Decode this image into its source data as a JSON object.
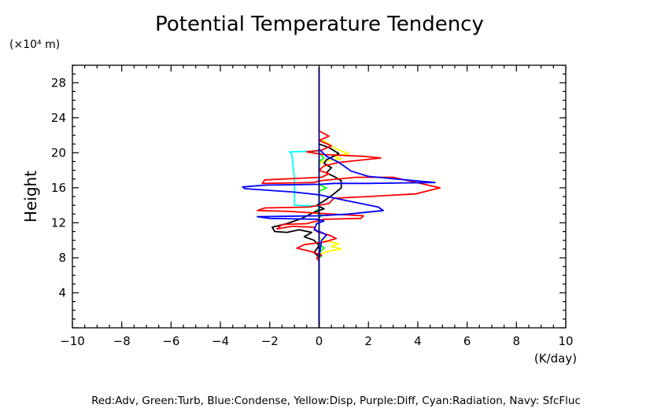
{
  "chart_data": {
    "type": "line",
    "title": "Potential Temperature Tendency",
    "ylabel": "Height",
    "y_unit": "(×10⁴ m)",
    "x_unit": "(K/day)",
    "xlim": [
      -10,
      10
    ],
    "ylim": [
      0,
      30
    ],
    "x_ticks": [
      "−10",
      "−8",
      "−6",
      "−4",
      "−2",
      "0",
      "2",
      "4",
      "6",
      "8",
      "10"
    ],
    "y_ticks": [
      "4",
      "8",
      "12",
      "16",
      "20",
      "24",
      "28"
    ],
    "footer": "Red:Adv, Green:Turb, Blue:Condense, Yellow:Disp, Purple:Diff, Cyan:Radiation, Navy: SfcFluc",
    "series": [
      {
        "color": "#ffff00",
        "points": [
          [
            0,
            21.6
          ],
          [
            0.3,
            21.2
          ],
          [
            0.6,
            20.6
          ],
          [
            0.9,
            20.2
          ],
          [
            1.2,
            19.9
          ],
          [
            0.6,
            19.6
          ],
          [
            0.9,
            19.3
          ],
          [
            0.1,
            19.0
          ],
          [
            0,
            18.5
          ],
          [
            0,
            10.3
          ],
          [
            0.3,
            9.9
          ],
          [
            0.8,
            9.6
          ],
          [
            0.5,
            9.3
          ],
          [
            0.9,
            9.0
          ],
          [
            0.3,
            8.7
          ],
          [
            0,
            8.4
          ]
        ]
      },
      {
        "color": "#00ffff",
        "points": [
          [
            0,
            20.2
          ],
          [
            -1.2,
            20.1
          ],
          [
            -1.1,
            19.8
          ],
          [
            -1.0,
            17.0
          ],
          [
            -1.0,
            16.0
          ],
          [
            -1.0,
            14.0
          ],
          [
            0,
            13.9
          ]
        ]
      },
      {
        "color": "#00ff00",
        "points": [
          [
            0,
            20.0
          ],
          [
            0.2,
            19.4
          ],
          [
            0,
            19.0
          ],
          [
            0,
            16.4
          ],
          [
            0.3,
            16.0
          ],
          [
            0,
            15.6
          ],
          [
            0,
            13.6
          ],
          [
            -0.2,
            13.2
          ],
          [
            0.1,
            12.9
          ],
          [
            0,
            12.5
          ],
          [
            0,
            9.6
          ],
          [
            0.2,
            9.1
          ],
          [
            0,
            8.6
          ],
          [
            0.1,
            8.2
          ],
          [
            0,
            8.0
          ]
        ]
      },
      {
        "color": "#000000",
        "points": [
          [
            0,
            21.0
          ],
          [
            0.4,
            20.6
          ],
          [
            0.8,
            19.9
          ],
          [
            0.3,
            19.2
          ],
          [
            0.2,
            18.8
          ],
          [
            0.5,
            18.3
          ],
          [
            0.3,
            17.7
          ],
          [
            0.6,
            17.3
          ],
          [
            0.9,
            16.8
          ],
          [
            0.9,
            16.0
          ],
          [
            0.6,
            15.3
          ],
          [
            0.2,
            14.5
          ],
          [
            -0.1,
            14.0
          ],
          [
            0.2,
            13.6
          ],
          [
            -0.2,
            13.2
          ],
          [
            -0.7,
            12.5
          ],
          [
            -1.3,
            11.9
          ],
          [
            -1.9,
            11.5
          ],
          [
            -1.8,
            11.0
          ],
          [
            -1.3,
            10.9
          ],
          [
            -0.8,
            11.2
          ],
          [
            -0.3,
            10.9
          ],
          [
            -0.6,
            10.4
          ],
          [
            -0.2,
            10.0
          ],
          [
            0,
            9.4
          ],
          [
            -0.2,
            8.6
          ],
          [
            0,
            8.1
          ],
          [
            0,
            0
          ]
        ]
      },
      {
        "color": "#ff0000",
        "points": [
          [
            0,
            29.5
          ],
          [
            0,
            22.5
          ],
          [
            0.4,
            21.9
          ],
          [
            0,
            21.4
          ],
          [
            0.5,
            20.8
          ],
          [
            0.1,
            20.3
          ],
          [
            -0.5,
            20.1
          ],
          [
            0.2,
            19.8
          ],
          [
            1.8,
            19.6
          ],
          [
            2.5,
            19.4
          ],
          [
            0.8,
            18.9
          ],
          [
            0.2,
            18.5
          ],
          [
            0,
            18.0
          ],
          [
            0.4,
            17.6
          ],
          [
            0.1,
            17.2
          ],
          [
            -2.2,
            16.9
          ],
          [
            -2.3,
            16.5
          ],
          [
            -0.2,
            16.6
          ],
          [
            0,
            16.8
          ],
          [
            1.5,
            17.2
          ],
          [
            3.0,
            17.2
          ],
          [
            4.9,
            16.0
          ],
          [
            3.9,
            15.3
          ],
          [
            2.0,
            15.0
          ],
          [
            0.6,
            14.8
          ],
          [
            0.4,
            14.2
          ],
          [
            -0.4,
            13.8
          ],
          [
            -2.2,
            13.7
          ],
          [
            -2.5,
            13.4
          ],
          [
            -1.2,
            13.3
          ],
          [
            0.5,
            13.0
          ],
          [
            1.8,
            12.8
          ],
          [
            1.7,
            12.5
          ],
          [
            0.2,
            12.4
          ],
          [
            -0.5,
            11.9
          ],
          [
            -1.5,
            11.8
          ],
          [
            -1.7,
            11.3
          ],
          [
            -1.1,
            11.6
          ],
          [
            -0.2,
            11.5
          ],
          [
            -0.1,
            11.0
          ],
          [
            0.4,
            10.6
          ],
          [
            0.7,
            10.2
          ],
          [
            0.2,
            9.8
          ],
          [
            -0.6,
            9.5
          ],
          [
            -0.9,
            9.1
          ],
          [
            -0.3,
            8.7
          ],
          [
            0.1,
            8.3
          ],
          [
            -0.1,
            8.0
          ],
          [
            0,
            7.6
          ],
          [
            0,
            0
          ]
        ]
      },
      {
        "color": "#0000ff",
        "points": [
          [
            0,
            20.4
          ],
          [
            0.3,
            19.6
          ],
          [
            0.8,
            18.9
          ],
          [
            1.3,
            17.9
          ],
          [
            2.0,
            17.3
          ],
          [
            3.5,
            16.9
          ],
          [
            4.7,
            16.6
          ],
          [
            2.0,
            16.5
          ],
          [
            0.6,
            16.5
          ],
          [
            0.1,
            16.4
          ],
          [
            -2.2,
            16.3
          ],
          [
            -3.1,
            16.1
          ],
          [
            -3.0,
            15.9
          ],
          [
            -1.0,
            15.5
          ],
          [
            0,
            15.2
          ],
          [
            1.0,
            14.6
          ],
          [
            2.4,
            13.8
          ],
          [
            2.6,
            13.4
          ],
          [
            1.2,
            13.0
          ],
          [
            0,
            12.8
          ],
          [
            -2.5,
            12.7
          ],
          [
            -2.0,
            12.5
          ],
          [
            -0.1,
            12.4
          ],
          [
            0.2,
            12.2
          ],
          [
            -0.1,
            11.9
          ],
          [
            -0.2,
            11.2
          ],
          [
            0.1,
            10.9
          ],
          [
            0.3,
            10.6
          ],
          [
            0.1,
            10.0
          ],
          [
            0,
            8.0
          ],
          [
            0,
            0
          ]
        ]
      },
      {
        "color": "#000080",
        "points": [
          [
            0,
            29.8
          ],
          [
            0,
            0
          ]
        ]
      }
    ]
  }
}
